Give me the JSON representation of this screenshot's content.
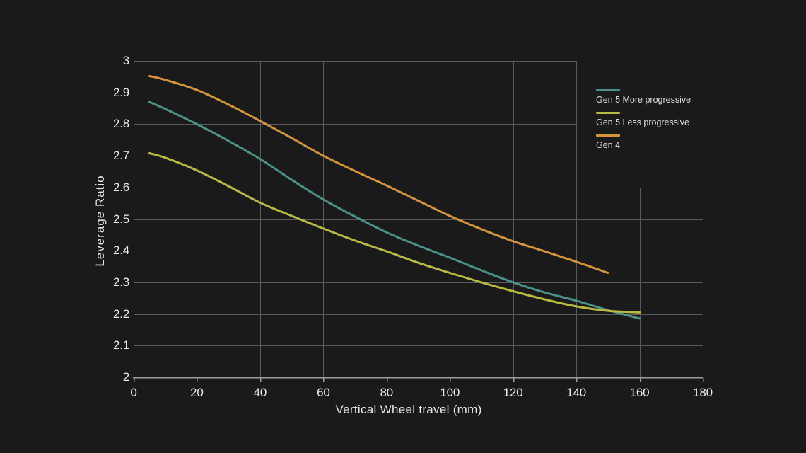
{
  "chart_data": {
    "type": "line",
    "title": "",
    "xlabel": "Vertical Wheel travel (mm)",
    "ylabel": "Leverage Ratio",
    "xlim": [
      0,
      180
    ],
    "ylim": [
      2,
      3
    ],
    "grid_on": true,
    "legend_position": "right-of-plot",
    "xticks": {
      "values": [
        0,
        20,
        40,
        60,
        80,
        100,
        120,
        140,
        160,
        180
      ],
      "labels": [
        "0",
        "20",
        "40",
        "60",
        "80",
        "100",
        "120",
        "140",
        "160",
        "180"
      ]
    },
    "yticks": {
      "values": [
        2,
        2.1,
        2.2,
        2.3,
        2.4,
        2.5,
        2.6,
        2.7,
        2.8,
        2.9,
        3
      ],
      "labels": [
        "2",
        "2.1",
        "2.2",
        "2.3",
        "2.4",
        "2.5",
        "2.6",
        "2.7",
        "2.8",
        "2.9",
        "3"
      ]
    },
    "grid": {
      "color": "#5a5a5a",
      "step_at_y": 2.6,
      "upper_region_xmax": 140,
      "note": "plot area is stepped: above y=2.6 the grid spans x=0-140, below it spans x=0-180"
    },
    "axis_color": "#9e9e9e",
    "series": [
      {
        "name": "Gen 5 More progressive",
        "color": "#4d9089",
        "x": [
          5,
          10,
          20,
          30,
          40,
          50,
          60,
          70,
          80,
          90,
          100,
          110,
          120,
          130,
          140,
          150,
          160
        ],
        "y": [
          2.87,
          2.848,
          2.8,
          2.747,
          2.69,
          2.624,
          2.562,
          2.508,
          2.458,
          2.416,
          2.378,
          2.338,
          2.3,
          2.268,
          2.242,
          2.212,
          2.186
        ]
      },
      {
        "name": "Gen 5 Less progressive",
        "color": "#b7ba40",
        "x": [
          5,
          10,
          20,
          30,
          40,
          50,
          60,
          70,
          80,
          90,
          100,
          110,
          120,
          130,
          140,
          150,
          160
        ],
        "y": [
          2.708,
          2.694,
          2.654,
          2.604,
          2.552,
          2.51,
          2.47,
          2.432,
          2.398,
          2.362,
          2.33,
          2.3,
          2.272,
          2.246,
          2.224,
          2.21,
          2.205
        ]
      },
      {
        "name": "Gen 4",
        "color": "#d4943a",
        "x": [
          5,
          10,
          20,
          30,
          40,
          50,
          60,
          70,
          80,
          90,
          100,
          110,
          120,
          130,
          140,
          150
        ],
        "y": [
          2.952,
          2.94,
          2.908,
          2.862,
          2.81,
          2.756,
          2.7,
          2.652,
          2.606,
          2.558,
          2.51,
          2.468,
          2.43,
          2.398,
          2.365,
          2.33
        ]
      }
    ]
  },
  "colors": {
    "background": "#1a1a1a",
    "tick_text": "#ececec",
    "legend_text": "#d9d9d9"
  }
}
